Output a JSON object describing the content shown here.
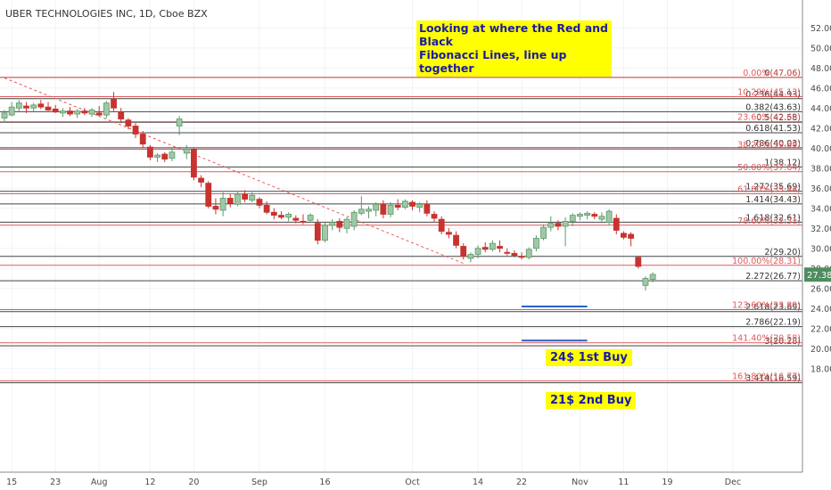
{
  "header": {
    "title": "UBER TECHNOLOGIES INC, 1D, Cboe BZX"
  },
  "annotations": {
    "note_line1": "Looking at where the Red and Black",
    "note_line2": "Fibonacci Lines, line up together",
    "buy1": "24$ 1st Buy",
    "buy2": "21$ 2nd Buy"
  },
  "colors": {
    "up": "#5b9a68",
    "down": "#c8332f",
    "red_fib": "#e05a5a",
    "black_fib": "#444444",
    "price_badge": "#4f8c5e",
    "highlight": "#ffff00",
    "note_text": "#1a1aa8"
  },
  "chart_data": {
    "type": "candlestick",
    "symbol": "UBER TECHNOLOGIES INC",
    "interval": "1D",
    "exchange": "Cboe BZX",
    "ylim": [
      15.5,
      53.2
    ],
    "y_ticks": [
      "52.00",
      "50.00",
      "48.00",
      "46.00",
      "44.00",
      "42.00",
      "40.00",
      "38.00",
      "36.00",
      "34.00",
      "32.00",
      "30.00",
      "28.00",
      "26.00",
      "24.00",
      "22.00",
      "20.00",
      "18.00"
    ],
    "x_ticks": [
      {
        "label": "15",
        "index": 1
      },
      {
        "label": "23",
        "index": 7
      },
      {
        "label": "Aug",
        "index": 13
      },
      {
        "label": "12",
        "index": 20
      },
      {
        "label": "20",
        "index": 26
      },
      {
        "label": "Sep",
        "index": 35
      },
      {
        "label": "16",
        "index": 44
      },
      {
        "label": "Oct",
        "index": 56
      },
      {
        "label": "14",
        "index": 65
      },
      {
        "label": "22",
        "index": 71
      },
      {
        "label": "Nov",
        "index": 79
      },
      {
        "label": "11",
        "index": 85
      },
      {
        "label": "19",
        "index": 91
      },
      {
        "label": "Dec",
        "index": 100
      }
    ],
    "current_price": "27.38",
    "black_fib": [
      {
        "level": "0(47.06)",
        "value": 47.06
      },
      {
        "level": "0.236(44.93)",
        "value": 44.93
      },
      {
        "level": "0.382(43.63)",
        "value": 43.63
      },
      {
        "level": "0.5(42.58)",
        "value": 42.58
      },
      {
        "level": "0.618(41.53)",
        "value": 41.53
      },
      {
        "level": "0.786(40.03)",
        "value": 40.03
      },
      {
        "level": "1(38.12)",
        "value": 38.12
      },
      {
        "level": "1.272(35.69)",
        "value": 35.69
      },
      {
        "level": "1.414(34.43)",
        "value": 34.43
      },
      {
        "level": "1.618(32.61)",
        "value": 32.61
      },
      {
        "level": "2(29.20)",
        "value": 29.2
      },
      {
        "level": "2.272(26.77)",
        "value": 26.77
      },
      {
        "level": "2.618(23.69)",
        "value": 23.69
      },
      {
        "level": "2.786(22.19)",
        "value": 22.19
      },
      {
        "level": "3(20.28)",
        "value": 20.28
      },
      {
        "level": "3.414(16.59)",
        "value": 16.59
      }
    ],
    "red_fib": [
      {
        "level": "0.00%(47.06)",
        "value": 47.06
      },
      {
        "level": "10.29%(45.13)",
        "value": 45.13
      },
      {
        "level": "23.60%(42.63)",
        "value": 42.63
      },
      {
        "level": "38.20%(39.89)",
        "value": 39.89
      },
      {
        "level": "50.00%(37.64)",
        "value": 37.64
      },
      {
        "level": "61.80%(35.44)",
        "value": 35.44
      },
      {
        "level": "78.60%(32.31)",
        "value": 32.31
      },
      {
        "level": "100.00%(28.31)",
        "value": 28.31
      },
      {
        "level": "123.60%(23.89)",
        "value": 23.89
      },
      {
        "level": "141.40%(20.58)",
        "value": 20.58
      },
      {
        "level": "161.80%(16.77)",
        "value": 16.77
      }
    ],
    "trendline": {
      "from": {
        "index": 0,
        "value": 47.0
      },
      "to": {
        "index": 63,
        "value": 28.5
      }
    },
    "buy_zones": [
      {
        "value": 24.2,
        "from_index": 71,
        "to_index": 80
      },
      {
        "value": 20.8,
        "from_index": 71,
        "to_index": 80
      }
    ],
    "candles": [
      {
        "i": 0,
        "o": 43.0,
        "h": 43.8,
        "l": 42.6,
        "c": 43.5
      },
      {
        "i": 1,
        "o": 43.3,
        "h": 44.6,
        "l": 43.2,
        "c": 44.1
      },
      {
        "i": 2,
        "o": 44.0,
        "h": 44.8,
        "l": 43.6,
        "c": 44.5
      },
      {
        "i": 3,
        "o": 44.2,
        "h": 44.6,
        "l": 43.5,
        "c": 44.0
      },
      {
        "i": 4,
        "o": 44.0,
        "h": 44.5,
        "l": 43.6,
        "c": 44.3
      },
      {
        "i": 5,
        "o": 44.4,
        "h": 44.8,
        "l": 43.9,
        "c": 44.1
      },
      {
        "i": 6,
        "o": 44.1,
        "h": 44.6,
        "l": 43.7,
        "c": 43.8
      },
      {
        "i": 7,
        "o": 43.9,
        "h": 44.3,
        "l": 43.5,
        "c": 43.6
      },
      {
        "i": 8,
        "o": 43.5,
        "h": 44.0,
        "l": 43.1,
        "c": 43.7
      },
      {
        "i": 9,
        "o": 43.7,
        "h": 44.1,
        "l": 43.2,
        "c": 43.4
      },
      {
        "i": 10,
        "o": 43.4,
        "h": 43.9,
        "l": 43.0,
        "c": 43.7
      },
      {
        "i": 11,
        "o": 43.7,
        "h": 44.0,
        "l": 43.3,
        "c": 43.5
      },
      {
        "i": 12,
        "o": 43.4,
        "h": 44.0,
        "l": 43.1,
        "c": 43.8
      },
      {
        "i": 13,
        "o": 43.5,
        "h": 44.2,
        "l": 43.2,
        "c": 43.3
      },
      {
        "i": 14,
        "o": 43.3,
        "h": 44.7,
        "l": 43.0,
        "c": 44.5
      },
      {
        "i": 15,
        "o": 44.9,
        "h": 45.6,
        "l": 43.7,
        "c": 44.0
      },
      {
        "i": 16,
        "o": 43.6,
        "h": 44.0,
        "l": 42.5,
        "c": 42.9
      },
      {
        "i": 17,
        "o": 42.8,
        "h": 43.0,
        "l": 41.9,
        "c": 42.2
      },
      {
        "i": 18,
        "o": 42.2,
        "h": 42.5,
        "l": 41.0,
        "c": 41.4
      },
      {
        "i": 19,
        "o": 41.4,
        "h": 41.7,
        "l": 40.0,
        "c": 40.4
      },
      {
        "i": 20,
        "o": 40.1,
        "h": 40.3,
        "l": 38.8,
        "c": 39.1
      },
      {
        "i": 21,
        "o": 39.1,
        "h": 39.5,
        "l": 38.6,
        "c": 39.3
      },
      {
        "i": 22,
        "o": 39.4,
        "h": 39.6,
        "l": 38.6,
        "c": 38.9
      },
      {
        "i": 23,
        "o": 39.0,
        "h": 40.1,
        "l": 38.7,
        "c": 39.6
      },
      {
        "i": 24,
        "o": 42.2,
        "h": 43.2,
        "l": 41.3,
        "c": 42.9
      },
      {
        "i": 25,
        "o": 39.5,
        "h": 40.3,
        "l": 38.9,
        "c": 39.9
      },
      {
        "i": 26,
        "o": 39.9,
        "h": 40.0,
        "l": 36.8,
        "c": 37.1
      },
      {
        "i": 27,
        "o": 37.0,
        "h": 37.3,
        "l": 36.1,
        "c": 36.6
      },
      {
        "i": 28,
        "o": 36.5,
        "h": 36.7,
        "l": 34.0,
        "c": 34.2
      },
      {
        "i": 29,
        "o": 34.2,
        "h": 35.0,
        "l": 33.4,
        "c": 33.9
      },
      {
        "i": 30,
        "o": 33.8,
        "h": 35.6,
        "l": 33.2,
        "c": 35.0
      },
      {
        "i": 31,
        "o": 35.0,
        "h": 35.4,
        "l": 34.1,
        "c": 34.5
      },
      {
        "i": 32,
        "o": 34.4,
        "h": 35.7,
        "l": 34.2,
        "c": 35.4
      },
      {
        "i": 33,
        "o": 35.4,
        "h": 35.8,
        "l": 34.6,
        "c": 34.9
      },
      {
        "i": 34,
        "o": 34.8,
        "h": 35.6,
        "l": 34.6,
        "c": 35.3
      },
      {
        "i": 35,
        "o": 34.9,
        "h": 35.1,
        "l": 34.0,
        "c": 34.3
      },
      {
        "i": 36,
        "o": 34.3,
        "h": 34.7,
        "l": 33.4,
        "c": 33.6
      },
      {
        "i": 37,
        "o": 33.6,
        "h": 34.0,
        "l": 32.9,
        "c": 33.3
      },
      {
        "i": 38,
        "o": 33.3,
        "h": 33.7,
        "l": 32.9,
        "c": 33.1
      },
      {
        "i": 39,
        "o": 33.1,
        "h": 33.6,
        "l": 32.7,
        "c": 33.4
      },
      {
        "i": 40,
        "o": 33.0,
        "h": 33.3,
        "l": 32.5,
        "c": 32.8
      },
      {
        "i": 41,
        "o": 32.7,
        "h": 33.4,
        "l": 32.4,
        "c": 32.6
      },
      {
        "i": 42,
        "o": 32.8,
        "h": 33.5,
        "l": 32.6,
        "c": 33.3
      },
      {
        "i": 43,
        "o": 32.5,
        "h": 32.9,
        "l": 30.4,
        "c": 30.8
      },
      {
        "i": 44,
        "o": 30.8,
        "h": 32.6,
        "l": 30.6,
        "c": 32.3
      },
      {
        "i": 45,
        "o": 32.3,
        "h": 32.9,
        "l": 31.8,
        "c": 32.6
      },
      {
        "i": 46,
        "o": 32.7,
        "h": 33.0,
        "l": 31.6,
        "c": 32.1
      },
      {
        "i": 47,
        "o": 32.0,
        "h": 33.1,
        "l": 31.5,
        "c": 32.9
      },
      {
        "i": 48,
        "o": 32.2,
        "h": 33.8,
        "l": 31.8,
        "c": 33.6
      },
      {
        "i": 49,
        "o": 33.5,
        "h": 35.2,
        "l": 33.3,
        "c": 33.9
      },
      {
        "i": 50,
        "o": 33.7,
        "h": 34.2,
        "l": 33.0,
        "c": 33.9
      },
      {
        "i": 51,
        "o": 33.8,
        "h": 34.6,
        "l": 33.2,
        "c": 34.4
      },
      {
        "i": 52,
        "o": 34.4,
        "h": 34.8,
        "l": 33.0,
        "c": 33.4
      },
      {
        "i": 53,
        "o": 33.4,
        "h": 34.6,
        "l": 33.1,
        "c": 34.3
      },
      {
        "i": 54,
        "o": 34.3,
        "h": 34.9,
        "l": 33.8,
        "c": 34.1
      },
      {
        "i": 55,
        "o": 34.1,
        "h": 34.9,
        "l": 33.9,
        "c": 34.7
      },
      {
        "i": 56,
        "o": 34.6,
        "h": 34.8,
        "l": 33.8,
        "c": 34.2
      },
      {
        "i": 57,
        "o": 34.1,
        "h": 34.6,
        "l": 33.6,
        "c": 34.4
      },
      {
        "i": 58,
        "o": 34.4,
        "h": 34.8,
        "l": 33.2,
        "c": 33.5
      },
      {
        "i": 59,
        "o": 33.4,
        "h": 33.7,
        "l": 32.6,
        "c": 33.0
      },
      {
        "i": 60,
        "o": 32.9,
        "h": 33.2,
        "l": 31.4,
        "c": 31.7
      },
      {
        "i": 61,
        "o": 31.6,
        "h": 32.0,
        "l": 31.0,
        "c": 31.4
      },
      {
        "i": 62,
        "o": 31.3,
        "h": 31.7,
        "l": 30.0,
        "c": 30.3
      },
      {
        "i": 63,
        "o": 30.2,
        "h": 30.5,
        "l": 28.9,
        "c": 29.2
      },
      {
        "i": 64,
        "o": 29.0,
        "h": 29.6,
        "l": 28.6,
        "c": 29.4
      },
      {
        "i": 65,
        "o": 29.4,
        "h": 30.3,
        "l": 29.0,
        "c": 30.0
      },
      {
        "i": 66,
        "o": 30.1,
        "h": 30.6,
        "l": 29.6,
        "c": 29.9
      },
      {
        "i": 67,
        "o": 29.9,
        "h": 30.8,
        "l": 29.7,
        "c": 30.5
      },
      {
        "i": 68,
        "o": 30.2,
        "h": 30.8,
        "l": 29.6,
        "c": 30.0
      },
      {
        "i": 69,
        "o": 29.6,
        "h": 30.0,
        "l": 29.3,
        "c": 29.5
      },
      {
        "i": 70,
        "o": 29.5,
        "h": 29.8,
        "l": 29.1,
        "c": 29.3
      },
      {
        "i": 71,
        "o": 29.2,
        "h": 29.6,
        "l": 28.9,
        "c": 29.1
      },
      {
        "i": 72,
        "o": 29.1,
        "h": 30.1,
        "l": 28.9,
        "c": 29.9
      },
      {
        "i": 73,
        "o": 30.0,
        "h": 31.3,
        "l": 29.7,
        "c": 31.0
      },
      {
        "i": 74,
        "o": 31.0,
        "h": 32.4,
        "l": 30.8,
        "c": 32.1
      },
      {
        "i": 75,
        "o": 32.1,
        "h": 33.2,
        "l": 31.7,
        "c": 32.5
      },
      {
        "i": 76,
        "o": 32.5,
        "h": 32.8,
        "l": 31.8,
        "c": 32.2
      },
      {
        "i": 77,
        "o": 32.2,
        "h": 33.1,
        "l": 30.2,
        "c": 32.7
      },
      {
        "i": 78,
        "o": 32.7,
        "h": 33.5,
        "l": 32.2,
        "c": 33.3
      },
      {
        "i": 79,
        "o": 33.2,
        "h": 33.6,
        "l": 32.8,
        "c": 33.4
      },
      {
        "i": 80,
        "o": 33.3,
        "h": 33.7,
        "l": 32.9,
        "c": 33.5
      },
      {
        "i": 81,
        "o": 33.4,
        "h": 33.6,
        "l": 32.9,
        "c": 33.2
      },
      {
        "i": 82,
        "o": 32.9,
        "h": 33.6,
        "l": 32.5,
        "c": 33.2
      },
      {
        "i": 83,
        "o": 32.6,
        "h": 33.9,
        "l": 32.3,
        "c": 33.7
      },
      {
        "i": 84,
        "o": 33.0,
        "h": 33.4,
        "l": 31.4,
        "c": 31.8
      },
      {
        "i": 85,
        "o": 31.5,
        "h": 31.7,
        "l": 30.9,
        "c": 31.1
      },
      {
        "i": 86,
        "o": 31.4,
        "h": 31.6,
        "l": 30.2,
        "c": 31.0
      },
      {
        "i": 87,
        "o": 29.1,
        "h": 29.2,
        "l": 28.0,
        "c": 28.2
      },
      {
        "i": 88,
        "o": 26.3,
        "h": 27.2,
        "l": 25.8,
        "c": 27.0
      },
      {
        "i": 89,
        "o": 26.9,
        "h": 27.6,
        "l": 26.6,
        "c": 27.4
      }
    ]
  }
}
